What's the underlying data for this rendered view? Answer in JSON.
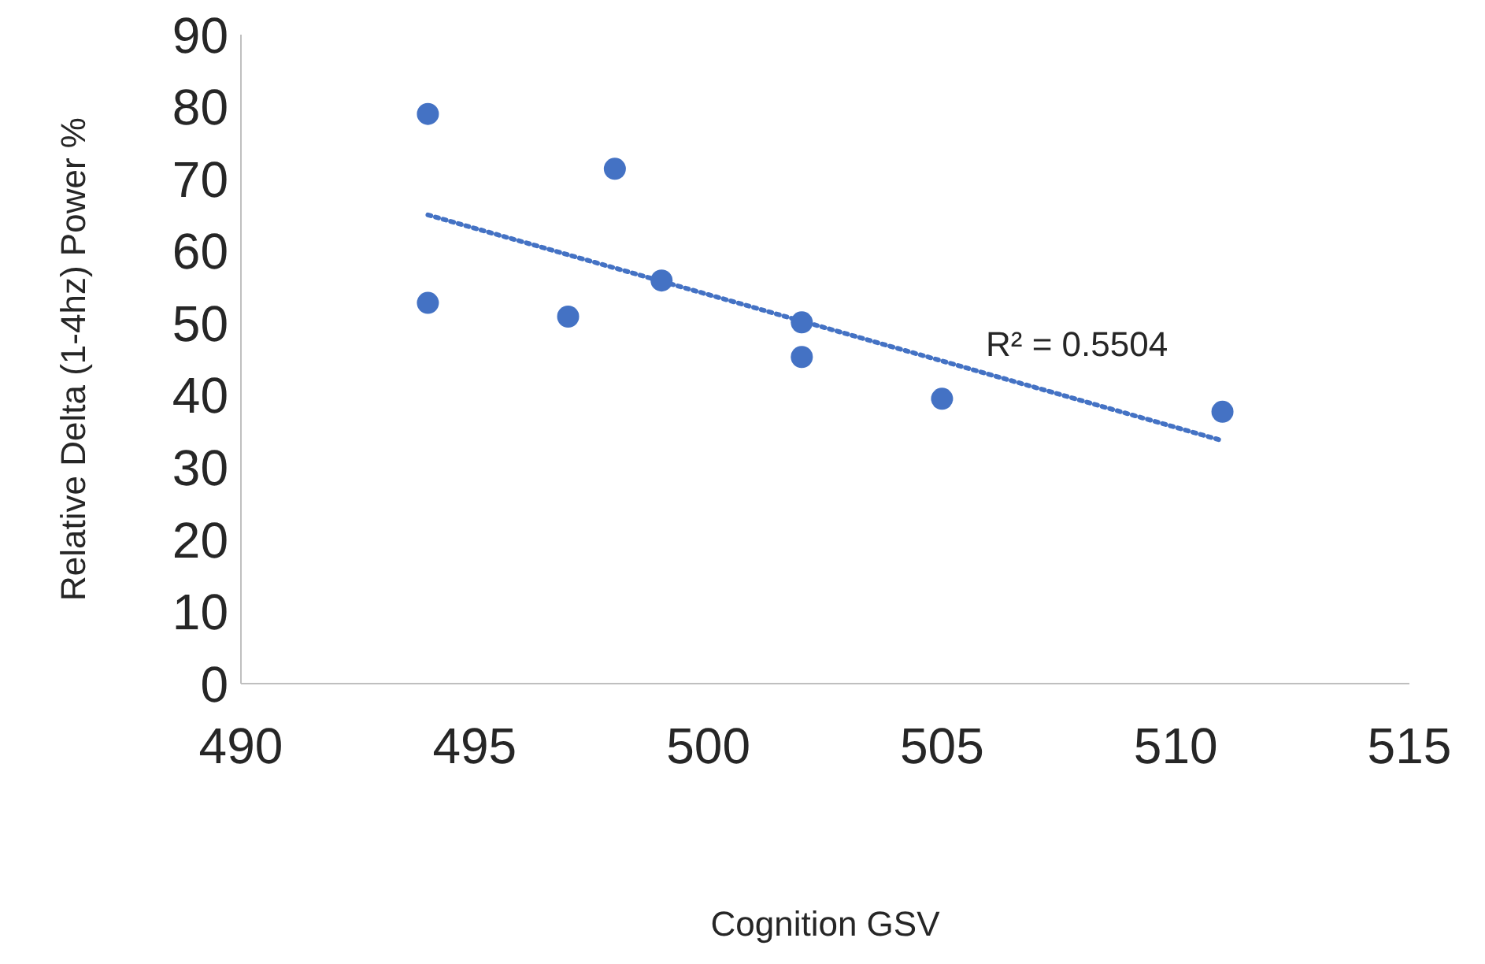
{
  "chart_data": {
    "type": "scatter",
    "xlabel": "Cognition GSV",
    "ylabel": "Relative Delta (1-4hz) Power  %",
    "annotations": [
      "R² = 0.5504"
    ],
    "xlim": [
      490,
      515
    ],
    "xticks": [
      490,
      495,
      500,
      505,
      510,
      515
    ],
    "ylim": [
      0,
      90
    ],
    "yticks": [
      0,
      10,
      20,
      30,
      40,
      50,
      60,
      70,
      80,
      90
    ],
    "grid": false,
    "legend": false,
    "marker": "circle",
    "series": [
      {
        "color": "#4472c4",
        "x": [
          494,
          494,
          497,
          498,
          499,
          502,
          502,
          505,
          511
        ],
        "values": [
          79,
          52.8,
          50.9,
          71.4,
          55.9,
          50.1,
          45.3,
          39.5,
          37.7
        ]
      },
      {
        "type": "line",
        "color": "#4472c4",
        "line_style": "dotted",
        "marker": "none",
        "x": [
          494,
          511
        ],
        "values": [
          65,
          33.7
        ]
      }
    ]
  }
}
